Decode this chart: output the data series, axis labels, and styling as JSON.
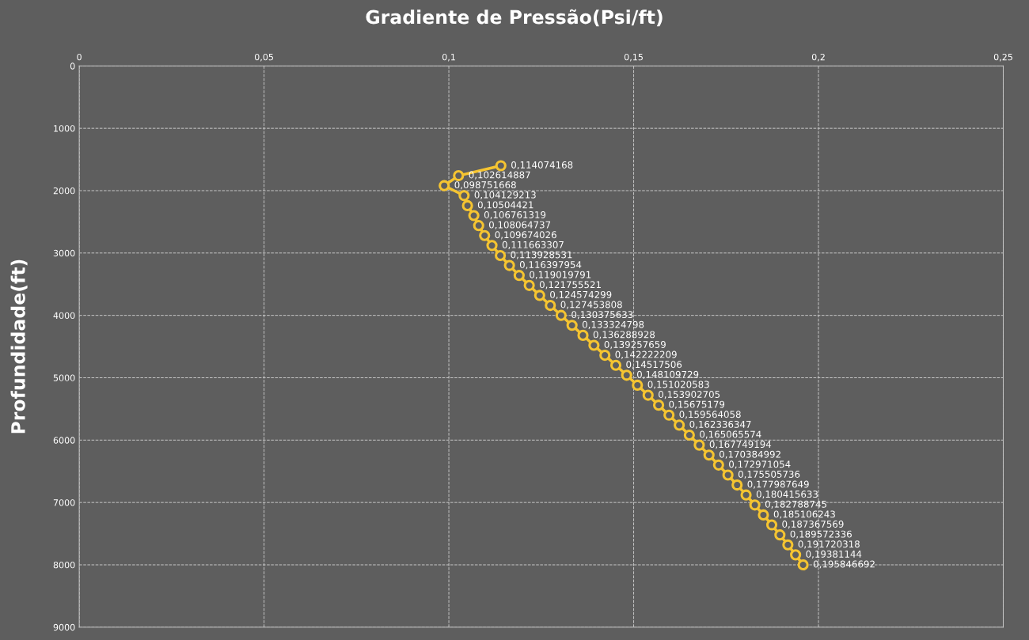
{
  "chart_data": {
    "type": "line",
    "orientation": "horizontal",
    "title": "Gradiente de Pressão(Psi/ft)",
    "ylabel": "Profundidade(ft)",
    "x": [
      1600,
      1760,
      1920,
      2080,
      2240,
      2400,
      2560,
      2720,
      2880,
      3040,
      3200,
      3360,
      3520,
      3680,
      3840,
      4000,
      4160,
      4320,
      4480,
      4640,
      4800,
      4960,
      5120,
      5280,
      5440,
      5600,
      5760,
      5920,
      6080,
      6240,
      6400,
      6560,
      6720,
      6880,
      7040,
      7200,
      7360,
      7520,
      7680,
      7840,
      8000
    ],
    "series": [
      {
        "color": "#f5c431",
        "values": [
          0.114074168,
          0.102614887,
          0.098751668,
          0.104129213,
          0.10504421,
          0.106761319,
          0.108064737,
          0.109674026,
          0.111663307,
          0.113928531,
          0.116397954,
          0.119019791,
          0.121755521,
          0.124574299,
          0.127453808,
          0.130375633,
          0.133324798,
          0.136288928,
          0.139257659,
          0.142222209,
          0.14517506,
          0.148109729,
          0.151020583,
          0.153902705,
          0.15675179,
          0.159564058,
          0.162336347,
          0.165065574,
          0.167749194,
          0.170384992,
          0.172971054,
          0.175505736,
          0.177987649,
          0.180415633,
          0.182788745,
          0.185106243,
          0.187367569,
          0.189572336,
          0.191720318,
          0.19381144,
          0.195846692
        ],
        "value_labels": [
          "0,114074168",
          "0,102614887",
          "0,098751668",
          "0,104129213",
          "0,10504421",
          "0,106761319",
          "0,108064737",
          "0,109674026",
          "0,111663307",
          "0,113928531",
          "0,116397954",
          "0,119019791",
          "0,121755521",
          "0,124574299",
          "0,127453808",
          "0,130375633",
          "0,133324798",
          "0,136288928",
          "0,139257659",
          "0,142222209",
          "0,14517506",
          "0,148109729",
          "0,151020583",
          "0,153902705",
          "0,15675179",
          "0,159564058",
          "0,162336347",
          "0,165065574",
          "0,167749194",
          "0,170384992",
          "0,172971054",
          "0,175505736",
          "0,177987649",
          "0,180415633",
          "0,182788745",
          "0,185106243",
          "0,187367569",
          "0,189572336",
          "0,191720318",
          "0,19381144",
          "0,195846692"
        ]
      }
    ],
    "xlim": [
      0,
      0.25
    ],
    "xticks": [
      0,
      {
        "value": 0.05,
        "label": "0,05"
      },
      {
        "value": 0.1,
        "label": "0,1"
      },
      {
        "value": 0.15,
        "label": "0,15"
      },
      {
        "value": 0.2,
        "label": "0,2"
      },
      {
        "value": 0.25,
        "label": "0,25"
      }
    ],
    "ylim": [
      9000,
      0
    ],
    "yticks": [
      0,
      1000,
      2000,
      3000,
      4000,
      5000,
      6000,
      7000,
      8000,
      9000
    ],
    "grid": true,
    "marker": "circle",
    "line_style": "solid"
  }
}
